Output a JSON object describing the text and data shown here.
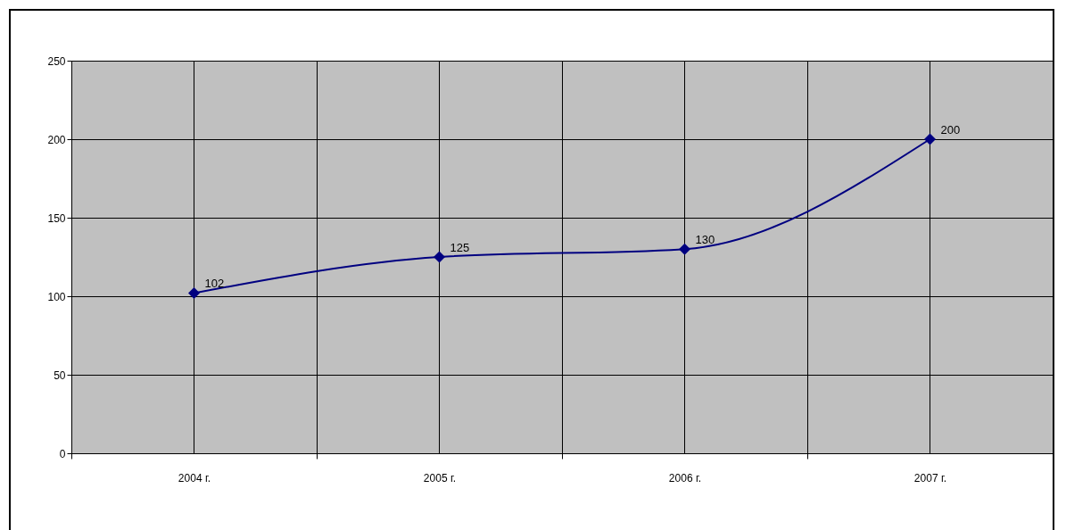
{
  "chart_data": {
    "type": "line",
    "categories": [
      "2004 г.",
      "2005 г.",
      "2006 г.",
      "2007 г."
    ],
    "series": [
      {
        "color": "#000080",
        "values": [
          102,
          125,
          130,
          200
        ]
      }
    ],
    "ylim": [
      0,
      250
    ],
    "yticks": [
      0,
      50,
      100,
      150,
      200,
      250
    ],
    "grid": true,
    "marker": "diamond",
    "line_style": "solid",
    "data_labels": true
  }
}
